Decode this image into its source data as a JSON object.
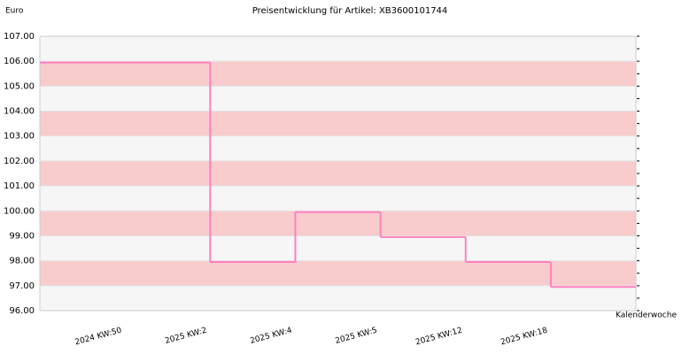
{
  "chart_data": {
    "type": "step",
    "title": "Preisentwicklung für Artikel: XB3600101744",
    "y_label": "Euro",
    "x_label": "Kalenderwoche",
    "categories": [
      "2024 KW:50",
      "2025 KW:2",
      "2025 KW:4",
      "2025 KW:5",
      "2025 KW:12",
      "2025 KW:18"
    ],
    "values": [
      105.95,
      97.95,
      99.95,
      98.95,
      97.95,
      96.95
    ],
    "color": "#ff80c0",
    "band_colors": [
      "#f6f6f6",
      "#f8cccc"
    ],
    "ylim": [
      96,
      107
    ],
    "yticks": [
      {
        "value": 96,
        "label": "96.00"
      },
      {
        "value": 97,
        "label": "97.00"
      },
      {
        "value": 98,
        "label": "98.00"
      },
      {
        "value": 99,
        "label": "99.00"
      },
      {
        "value": 100,
        "label": "100.00"
      },
      {
        "value": 101,
        "label": "101.00"
      },
      {
        "value": 102,
        "label": "102.00"
      },
      {
        "value": 103,
        "label": "103.00"
      },
      {
        "value": 104,
        "label": "104.00"
      },
      {
        "value": 105,
        "label": "105.00"
      },
      {
        "value": 106,
        "label": "106.00"
      },
      {
        "value": 107,
        "label": "107.00"
      }
    ],
    "grid": true
  }
}
